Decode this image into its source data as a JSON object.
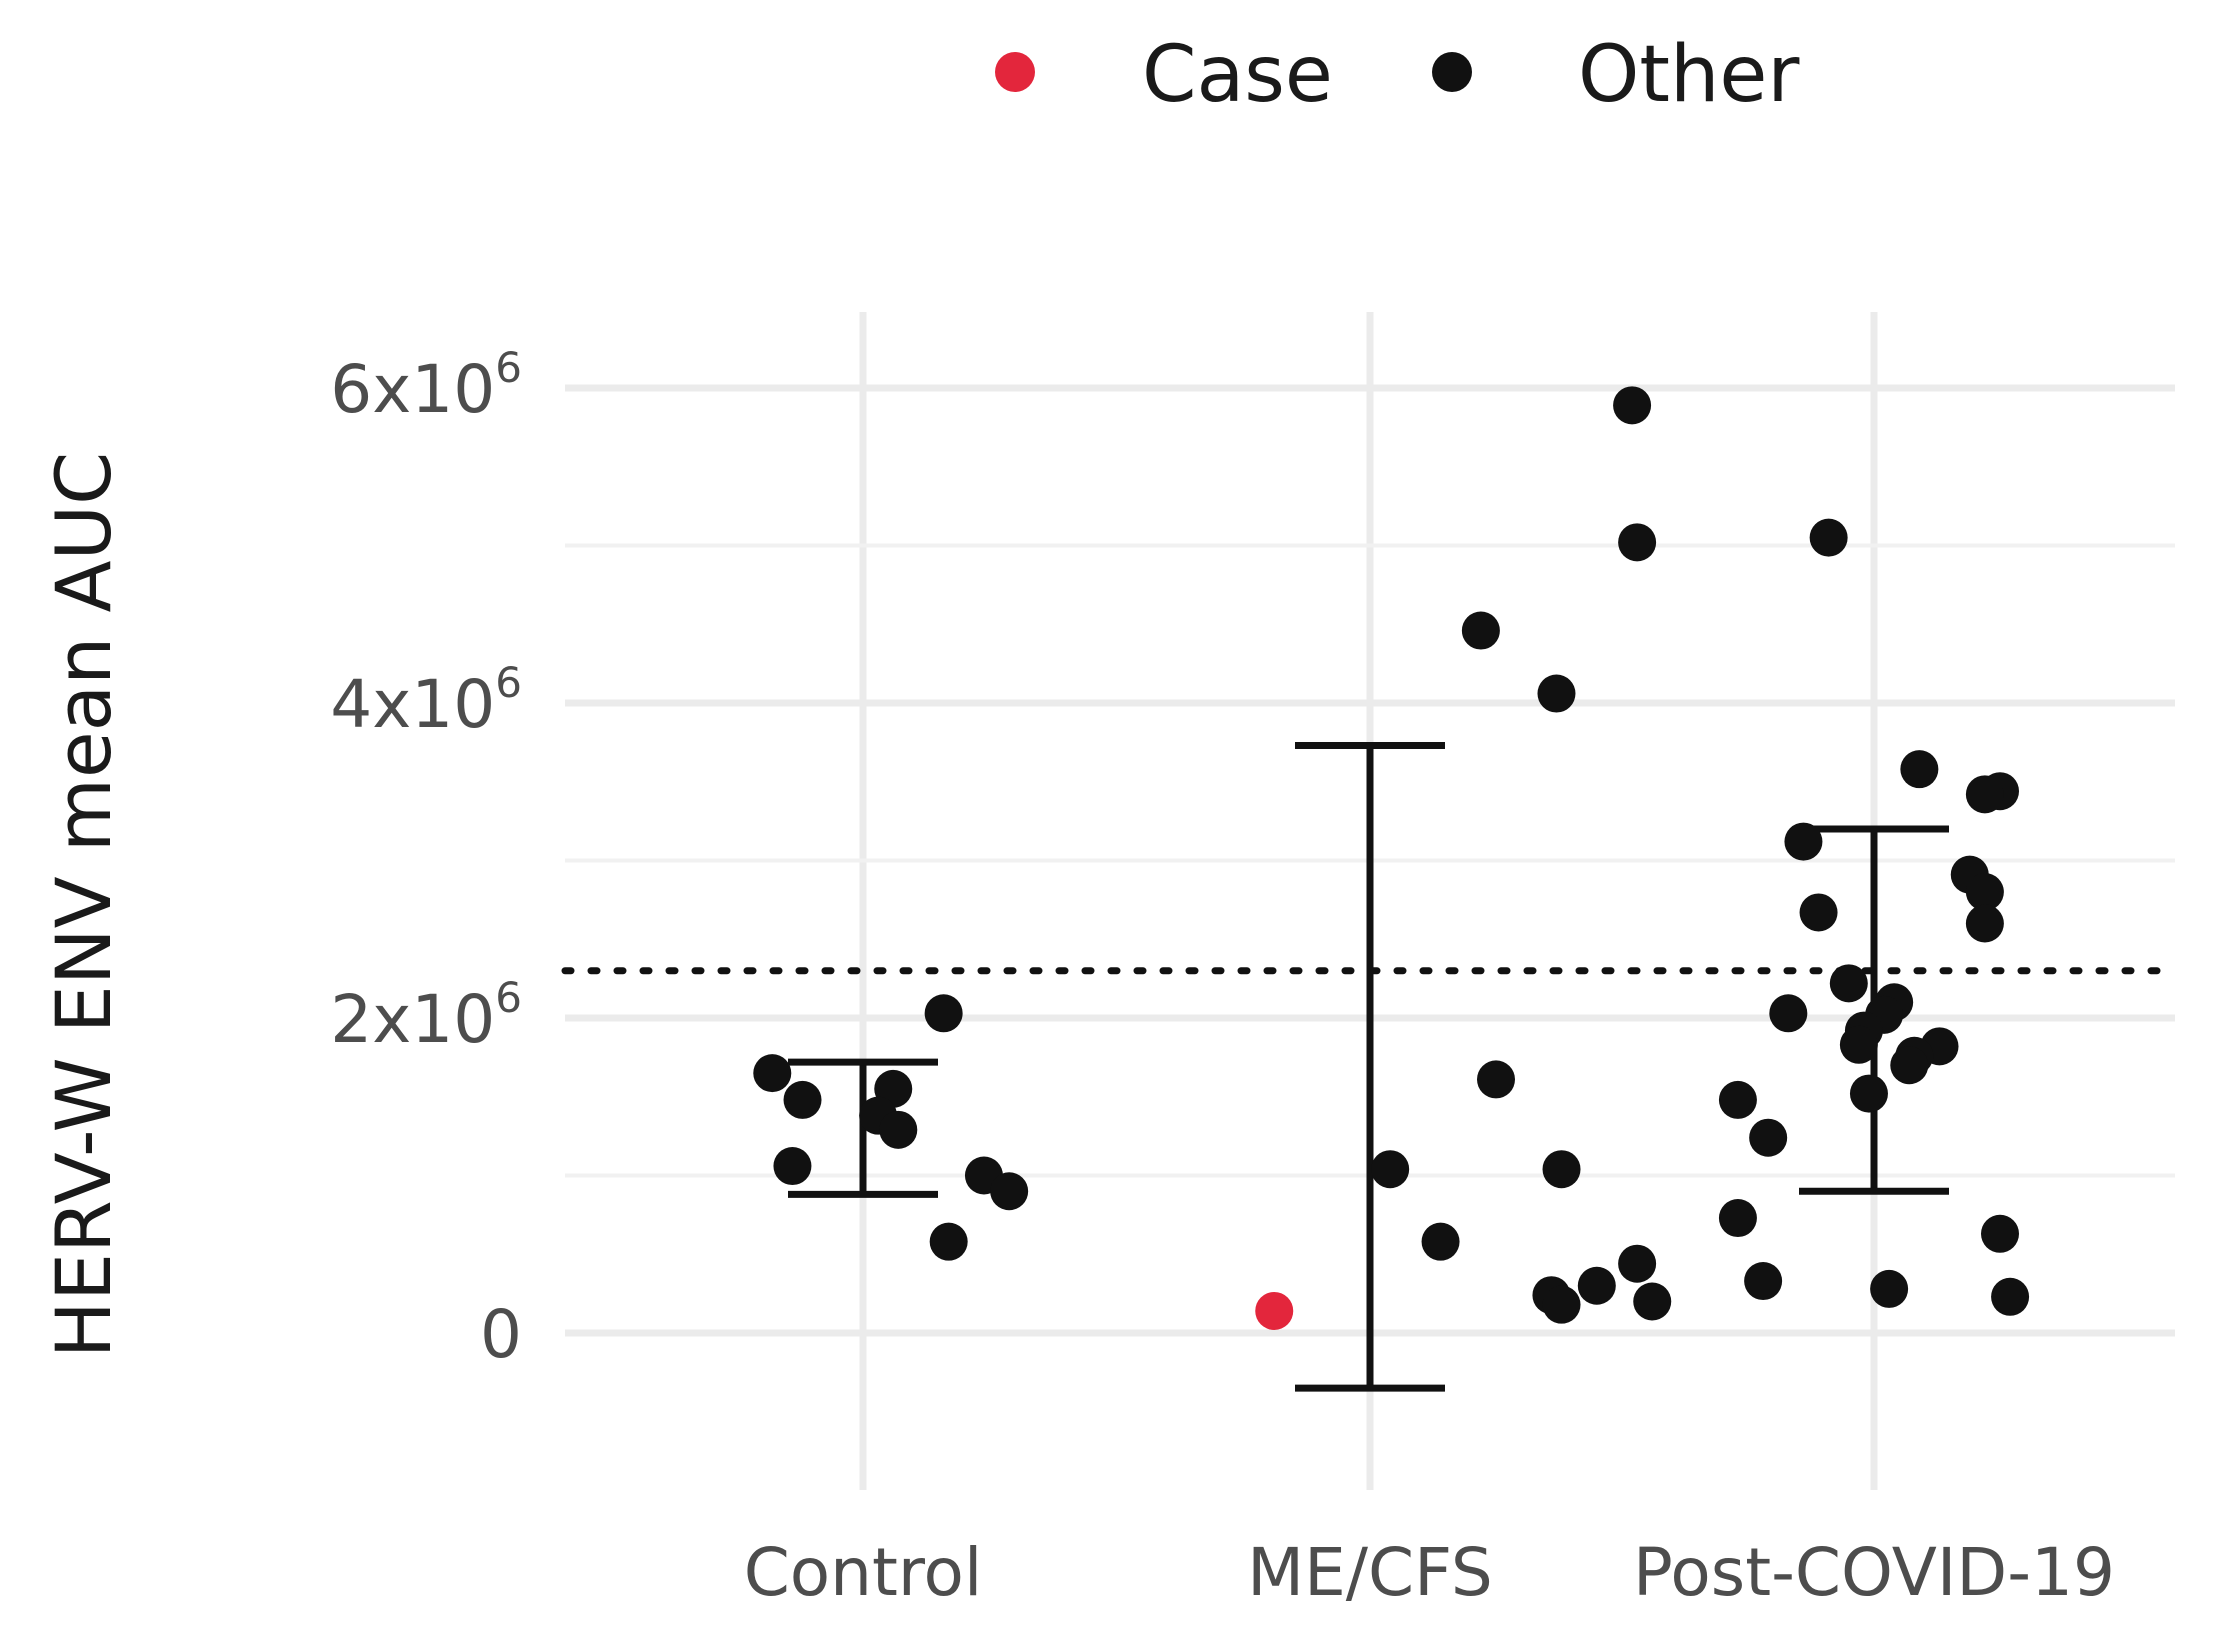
{
  "chart_data": {
    "type": "scatter",
    "ylabel": "HERV-W ENV mean AUC",
    "xlabel": "",
    "categories": [
      "Control",
      "ME/CFS",
      "Post-COVID-19"
    ],
    "ylim": [
      -1000000,
      6500000
    ],
    "yticks": [
      0,
      2000000,
      4000000,
      6000000
    ],
    "ytick_labels": [
      {
        "base": "0",
        "exp": ""
      },
      {
        "base": "2x10",
        "exp": "6"
      },
      {
        "base": "4x10",
        "exp": "6"
      },
      {
        "base": "6x10",
        "exp": "6"
      }
    ],
    "threshold": 2300000,
    "legend": {
      "position": "top-center",
      "entries": [
        {
          "label": "Case",
          "color": "#e3263c"
        },
        {
          "label": "Other",
          "color": "#111111"
        }
      ]
    },
    "error_bars": [
      {
        "category": "Control",
        "low": 880000,
        "high": 1720000
      },
      {
        "category": "ME/CFS",
        "low": -350000,
        "high": 3730000
      },
      {
        "category": "Post-COVID-19",
        "low": 900000,
        "high": 3200000
      }
    ],
    "points": [
      {
        "category": "Control",
        "jitter": -0.18,
        "y": 1650000,
        "group": "Other"
      },
      {
        "category": "Control",
        "jitter": -0.12,
        "y": 1480000,
        "group": "Other"
      },
      {
        "category": "Control",
        "jitter": 0.06,
        "y": 1550000,
        "group": "Other"
      },
      {
        "category": "Control",
        "jitter": 0.03,
        "y": 1380000,
        "group": "Other"
      },
      {
        "category": "Control",
        "jitter": 0.07,
        "y": 1290000,
        "group": "Other"
      },
      {
        "category": "Control",
        "jitter": -0.14,
        "y": 1060000,
        "group": "Other"
      },
      {
        "category": "Control",
        "jitter": 0.24,
        "y": 1000000,
        "group": "Other"
      },
      {
        "category": "Control",
        "jitter": 0.29,
        "y": 900000,
        "group": "Other"
      },
      {
        "category": "Control",
        "jitter": 0.17,
        "y": 580000,
        "group": "Other"
      },
      {
        "category": "Control",
        "jitter": 0.16,
        "y": 2030000,
        "group": "Other"
      },
      {
        "category": "ME/CFS",
        "jitter": 0.52,
        "y": 5890000,
        "group": "Other"
      },
      {
        "category": "ME/CFS",
        "jitter": 0.53,
        "y": 5020000,
        "group": "Other"
      },
      {
        "category": "ME/CFS",
        "jitter": 0.22,
        "y": 4460000,
        "group": "Other"
      },
      {
        "category": "ME/CFS",
        "jitter": 0.37,
        "y": 4060000,
        "group": "Other"
      },
      {
        "category": "ME/CFS",
        "jitter": 0.25,
        "y": 1610000,
        "group": "Other"
      },
      {
        "category": "ME/CFS",
        "jitter": 0.04,
        "y": 1040000,
        "group": "Other"
      },
      {
        "category": "ME/CFS",
        "jitter": 0.38,
        "y": 1040000,
        "group": "Other"
      },
      {
        "category": "ME/CFS",
        "jitter": 0.14,
        "y": 580000,
        "group": "Other"
      },
      {
        "category": "ME/CFS",
        "jitter": 0.53,
        "y": 440000,
        "group": "Other"
      },
      {
        "category": "ME/CFS",
        "jitter": 0.45,
        "y": 300000,
        "group": "Other"
      },
      {
        "category": "ME/CFS",
        "jitter": 0.36,
        "y": 240000,
        "group": "Other"
      },
      {
        "category": "ME/CFS",
        "jitter": 0.38,
        "y": 180000,
        "group": "Other"
      },
      {
        "category": "ME/CFS",
        "jitter": 0.56,
        "y": 200000,
        "group": "Other"
      },
      {
        "category": "ME/CFS",
        "jitter": -0.19,
        "y": 140000,
        "group": "Case"
      },
      {
        "category": "Post-COVID-19",
        "jitter": -0.09,
        "y": 5050000,
        "group": "Other"
      },
      {
        "category": "Post-COVID-19",
        "jitter": 0.09,
        "y": 3580000,
        "group": "Other"
      },
      {
        "category": "Post-COVID-19",
        "jitter": 0.25,
        "y": 3440000,
        "group": "Other"
      },
      {
        "category": "Post-COVID-19",
        "jitter": 0.22,
        "y": 3420000,
        "group": "Other"
      },
      {
        "category": "Post-COVID-19",
        "jitter": -0.14,
        "y": 3120000,
        "group": "Other"
      },
      {
        "category": "Post-COVID-19",
        "jitter": 0.19,
        "y": 2910000,
        "group": "Other"
      },
      {
        "category": "Post-COVID-19",
        "jitter": 0.22,
        "y": 2800000,
        "group": "Other"
      },
      {
        "category": "Post-COVID-19",
        "jitter": -0.11,
        "y": 2670000,
        "group": "Other"
      },
      {
        "category": "Post-COVID-19",
        "jitter": 0.22,
        "y": 2600000,
        "group": "Other"
      },
      {
        "category": "Post-COVID-19",
        "jitter": -0.05,
        "y": 2220000,
        "group": "Other"
      },
      {
        "category": "Post-COVID-19",
        "jitter": 0.04,
        "y": 2100000,
        "group": "Other"
      },
      {
        "category": "Post-COVID-19",
        "jitter": -0.17,
        "y": 2030000,
        "group": "Other"
      },
      {
        "category": "Post-COVID-19",
        "jitter": 0.02,
        "y": 2020000,
        "group": "Other"
      },
      {
        "category": "Post-COVID-19",
        "jitter": -0.02,
        "y": 1920000,
        "group": "Other"
      },
      {
        "category": "Post-COVID-19",
        "jitter": -0.03,
        "y": 1830000,
        "group": "Other"
      },
      {
        "category": "Post-COVID-19",
        "jitter": 0.13,
        "y": 1820000,
        "group": "Other"
      },
      {
        "category": "Post-COVID-19",
        "jitter": 0.08,
        "y": 1760000,
        "group": "Other"
      },
      {
        "category": "Post-COVID-19",
        "jitter": 0.07,
        "y": 1700000,
        "group": "Other"
      },
      {
        "category": "Post-COVID-19",
        "jitter": -0.27,
        "y": 1480000,
        "group": "Other"
      },
      {
        "category": "Post-COVID-19",
        "jitter": -0.01,
        "y": 1520000,
        "group": "Other"
      },
      {
        "category": "Post-COVID-19",
        "jitter": -0.21,
        "y": 1240000,
        "group": "Other"
      },
      {
        "category": "Post-COVID-19",
        "jitter": -0.27,
        "y": 730000,
        "group": "Other"
      },
      {
        "category": "Post-COVID-19",
        "jitter": 0.25,
        "y": 630000,
        "group": "Other"
      },
      {
        "category": "Post-COVID-19",
        "jitter": -0.22,
        "y": 330000,
        "group": "Other"
      },
      {
        "category": "Post-COVID-19",
        "jitter": 0.03,
        "y": 280000,
        "group": "Other"
      },
      {
        "category": "Post-COVID-19",
        "jitter": 0.27,
        "y": 230000,
        "group": "Other"
      }
    ]
  }
}
